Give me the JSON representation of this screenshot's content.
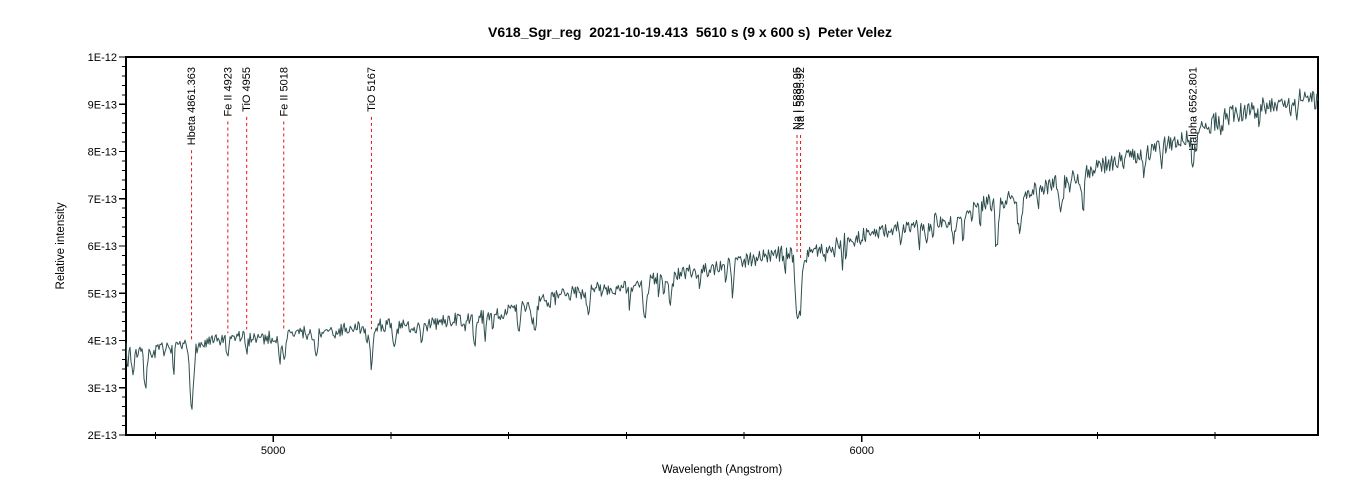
{
  "chart_data": {
    "type": "line",
    "title": "V618_Sgr_reg  2021-10-19.413  5610 s (9 x 600 s)  Peter Velez",
    "xlabel": "Wavelength (Angstrom)",
    "ylabel": "Relative intensity",
    "grid": false,
    "legend": "none",
    "xlim": [
      4750,
      6775
    ],
    "intensity_unit": "1e-13",
    "ylim": [
      2,
      10
    ],
    "y_ticks_major": [
      {
        "value": 10,
        "label": "1E-12"
      },
      {
        "value": 9,
        "label": "9E-13"
      },
      {
        "value": 8,
        "label": "8E-13"
      },
      {
        "value": 7,
        "label": "7E-13"
      },
      {
        "value": 6,
        "label": "6E-13"
      },
      {
        "value": 5,
        "label": "5E-13"
      },
      {
        "value": 4,
        "label": "4E-13"
      },
      {
        "value": 3,
        "label": "3E-13"
      },
      {
        "value": 2,
        "label": "2E-13"
      }
    ],
    "y_ticks_minor_step": 0.2,
    "x_ticks_major": [
      {
        "value": 5000,
        "label": "5000"
      },
      {
        "value": 6000,
        "label": "6000"
      }
    ],
    "x_ticks_minor": [
      4800,
      5200,
      5400,
      5600,
      5800,
      6200,
      6400,
      6600
    ],
    "line_color": "#2F4F4F",
    "annotation_color": "#ee1111",
    "axis_color": "#000000",
    "annotations": [
      {
        "label": "Hbeta 4861.363",
        "wavelength": 4861.363
      },
      {
        "label": "Fe II 4923",
        "wavelength": 4923
      },
      {
        "label": "TiO 4955",
        "wavelength": 4955
      },
      {
        "label": "Fe II 5018",
        "wavelength": 5018
      },
      {
        "label": "TiO 5167",
        "wavelength": 5167
      },
      {
        "label": "Na I 5889.95",
        "wavelength": 5889.95
      },
      {
        "label": "Na I 5895.92",
        "wavelength": 5895.92
      },
      {
        "label": "Halpha 6562.801",
        "wavelength": 6562.801
      }
    ],
    "continuum_points": [
      [
        4750,
        3.9
      ],
      [
        4770,
        3.75
      ],
      [
        4790,
        3.72
      ],
      [
        4810,
        3.82
      ],
      [
        4830,
        3.8
      ],
      [
        4850,
        3.87
      ],
      [
        4870,
        3.87
      ],
      [
        4890,
        3.95
      ],
      [
        4910,
        4.0
      ],
      [
        4930,
        4.05
      ],
      [
        4950,
        4.1
      ],
      [
        4970,
        4.08
      ],
      [
        4990,
        4.05
      ],
      [
        5010,
        4.1
      ],
      [
        5030,
        4.12
      ],
      [
        5050,
        4.18
      ],
      [
        5070,
        4.1
      ],
      [
        5090,
        4.15
      ],
      [
        5110,
        4.2
      ],
      [
        5130,
        4.25
      ],
      [
        5150,
        4.3
      ],
      [
        5170,
        4.32
      ],
      [
        5190,
        4.35
      ],
      [
        5210,
        4.28
      ],
      [
        5230,
        4.3
      ],
      [
        5250,
        4.28
      ],
      [
        5270,
        4.35
      ],
      [
        5290,
        4.4
      ],
      [
        5310,
        4.45
      ],
      [
        5330,
        4.42
      ],
      [
        5350,
        4.5
      ],
      [
        5370,
        4.55
      ],
      [
        5390,
        4.6
      ],
      [
        5410,
        4.65
      ],
      [
        5430,
        4.72
      ],
      [
        5450,
        4.8
      ],
      [
        5470,
        4.85
      ],
      [
        5490,
        4.95
      ],
      [
        5510,
        5.0
      ],
      [
        5530,
        5.05
      ],
      [
        5550,
        5.1
      ],
      [
        5570,
        5.05
      ],
      [
        5590,
        5.1
      ],
      [
        5610,
        5.15
      ],
      [
        5630,
        5.22
      ],
      [
        5650,
        5.3
      ],
      [
        5670,
        5.35
      ],
      [
        5690,
        5.4
      ],
      [
        5710,
        5.45
      ],
      [
        5730,
        5.5
      ],
      [
        5750,
        5.55
      ],
      [
        5770,
        5.65
      ],
      [
        5790,
        5.7
      ],
      [
        5810,
        5.72
      ],
      [
        5830,
        5.78
      ],
      [
        5850,
        5.8
      ],
      [
        5870,
        5.85
      ],
      [
        5890,
        5.85
      ],
      [
        5910,
        5.9
      ],
      [
        5930,
        5.95
      ],
      [
        5950,
        6.0
      ],
      [
        5970,
        6.1
      ],
      [
        5990,
        6.15
      ],
      [
        6010,
        6.25
      ],
      [
        6030,
        6.3
      ],
      [
        6050,
        6.35
      ],
      [
        6070,
        6.35
      ],
      [
        6090,
        6.4
      ],
      [
        6110,
        6.45
      ],
      [
        6130,
        6.55
      ],
      [
        6150,
        6.6
      ],
      [
        6170,
        6.7
      ],
      [
        6190,
        6.85
      ],
      [
        6210,
        6.9
      ],
      [
        6230,
        6.95
      ],
      [
        6250,
        7.0
      ],
      [
        6270,
        7.1
      ],
      [
        6290,
        7.15
      ],
      [
        6310,
        7.25
      ],
      [
        6330,
        7.35
      ],
      [
        6350,
        7.4
      ],
      [
        6370,
        7.5
      ],
      [
        6390,
        7.6
      ],
      [
        6410,
        7.7
      ],
      [
        6430,
        7.75
      ],
      [
        6450,
        7.85
      ],
      [
        6470,
        7.95
      ],
      [
        6490,
        8.05
      ],
      [
        6510,
        8.1
      ],
      [
        6530,
        8.2
      ],
      [
        6550,
        8.3
      ],
      [
        6570,
        8.4
      ],
      [
        6590,
        8.55
      ],
      [
        6610,
        8.7
      ],
      [
        6630,
        8.8
      ],
      [
        6650,
        8.85
      ],
      [
        6670,
        8.9
      ],
      [
        6690,
        9.0
      ],
      [
        6710,
        9.05
      ],
      [
        6730,
        9.1
      ],
      [
        6750,
        9.15
      ],
      [
        6775,
        9.25
      ]
    ],
    "absorption_features": [
      [
        4762,
        0.5,
        2.5
      ],
      [
        4783,
        0.65,
        2.5
      ],
      [
        4861.4,
        1.3,
        3.0
      ],
      [
        4923,
        0.45,
        2.2
      ],
      [
        4955,
        0.35,
        2.2
      ],
      [
        5018,
        0.55,
        2.2
      ],
      [
        5167,
        0.9,
        2.8
      ],
      [
        5206,
        0.5,
        2.4
      ],
      [
        5445,
        0.55,
        2.2
      ],
      [
        5535,
        0.5,
        2.2
      ],
      [
        5632,
        0.8,
        2.8
      ],
      [
        5675,
        0.6,
        2.4
      ],
      [
        5780,
        0.45,
        2.0
      ],
      [
        5890,
        1.35,
        2.8
      ],
      [
        5896,
        1.1,
        2.4
      ],
      [
        6156,
        0.5,
        2.4
      ],
      [
        6230,
        0.8,
        3.0
      ],
      [
        6268,
        0.85,
        3.2
      ],
      [
        6339,
        0.7,
        2.6
      ],
      [
        6375,
        0.5,
        2.4
      ],
      [
        6480,
        0.5,
        2.4
      ],
      [
        6563,
        0.65,
        2.8
      ],
      [
        6610,
        0.45,
        2.2
      ]
    ],
    "noise": {
      "seed": 7,
      "amplitude": 0.13,
      "spike_probability": 0.05,
      "spike_depth_max": 0.45
    },
    "sample_step_angstrom": 1.7
  }
}
